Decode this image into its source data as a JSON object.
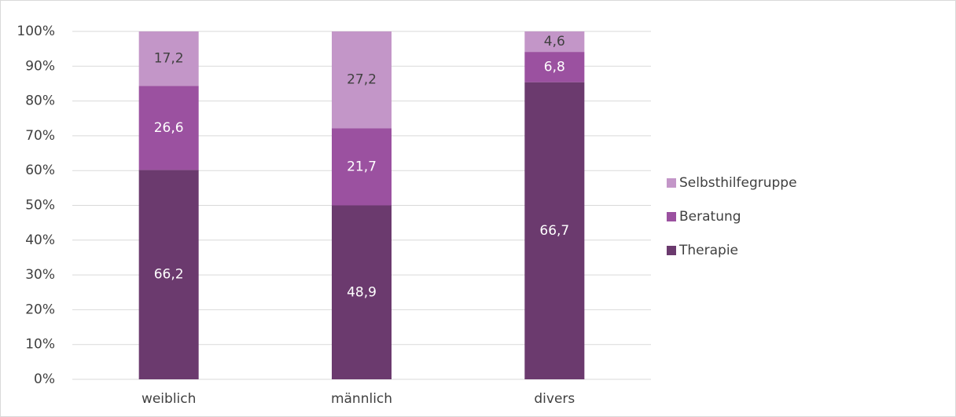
{
  "chart_data": {
    "type": "bar",
    "stack": "percent",
    "categories": [
      "weiblich",
      "männlich",
      "divers"
    ],
    "series": [
      {
        "name": "Therapie",
        "color": "#6b3a6e",
        "values": [
          66.2,
          48.9,
          66.7
        ],
        "value_labels": [
          "66,2",
          "48,9",
          "66,7"
        ]
      },
      {
        "name": "Beratung",
        "color": "#9b51a0",
        "values": [
          26.6,
          21.7,
          6.8
        ],
        "value_labels": [
          "26,6",
          "21,7",
          "6,8"
        ]
      },
      {
        "name": "Selbsthilfegruppe",
        "color": "#c396c8",
        "values": [
          17.2,
          27.2,
          4.6
        ],
        "value_labels": [
          "17,2",
          "27,2",
          "4,6"
        ]
      }
    ],
    "ylim": [
      0,
      100
    ],
    "yticks": [
      {
        "value": 0,
        "label": "0%"
      },
      {
        "value": 10,
        "label": "10%"
      },
      {
        "value": 20,
        "label": "20%"
      },
      {
        "value": 30,
        "label": "30%"
      },
      {
        "value": 40,
        "label": "40%"
      },
      {
        "value": 50,
        "label": "50%"
      },
      {
        "value": 60,
        "label": "60%"
      },
      {
        "value": 70,
        "label": "70%"
      },
      {
        "value": 80,
        "label": "80%"
      },
      {
        "value": 90,
        "label": "90%"
      },
      {
        "value": 100,
        "label": "100%"
      }
    ],
    "grid": true,
    "legend": "right"
  }
}
